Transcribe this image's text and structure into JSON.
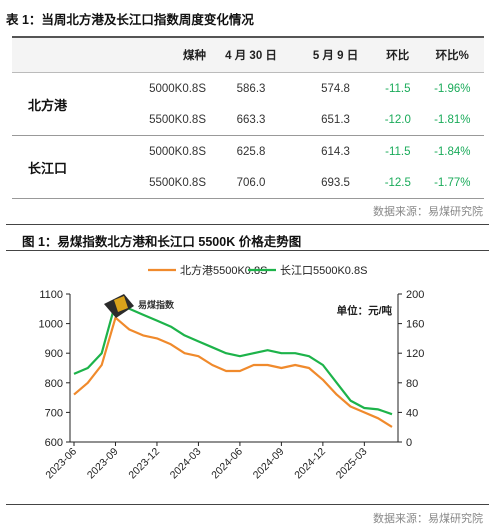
{
  "table": {
    "caption": "表 1：当周北方港及长江口指数周度变化情况",
    "headers": [
      "",
      "煤种",
      "4 月 30 日",
      "5 月 9 日",
      "环比",
      "环比%"
    ],
    "groups": [
      {
        "port": "北方港",
        "rows": [
          {
            "kind": "5000K0.8S",
            "apr30": "586.3",
            "may9": "574.8",
            "chg": "-11.5",
            "pct": "-1.96%"
          },
          {
            "kind": "5500K0.8S",
            "apr30": "663.3",
            "may9": "651.3",
            "chg": "-12.0",
            "pct": "-1.81%"
          }
        ]
      },
      {
        "port": "长江口",
        "rows": [
          {
            "kind": "5000K0.8S",
            "apr30": "625.8",
            "may9": "614.3",
            "chg": "-11.5",
            "pct": "-1.84%"
          },
          {
            "kind": "5500K0.8S",
            "apr30": "706.0",
            "may9": "693.5",
            "chg": "-12.5",
            "pct": "-1.77%"
          }
        ]
      }
    ],
    "source": "数据来源：易煤研究院"
  },
  "chart": {
    "caption": "图 1：易煤指数北方港和长江口 5500K 价格走势图",
    "unit_label": "单位：元/吨",
    "logo_text": "易煤指数",
    "source": "数据来源：易煤研究院"
  },
  "chart_data": {
    "type": "line",
    "x": [
      "2023-06",
      "2023-07",
      "2023-08",
      "2023-09",
      "2023-10",
      "2023-11",
      "2023-12",
      "2024-01",
      "2024-02",
      "2024-03",
      "2024-04",
      "2024-05",
      "2024-06",
      "2024-07",
      "2024-08",
      "2024-09",
      "2024-10",
      "2024-11",
      "2024-12",
      "2025-01",
      "2025-02",
      "2025-03",
      "2025-04",
      "2025-05"
    ],
    "x_tick_labels": [
      "2023-06",
      "2023-09",
      "2023-12",
      "2024-03",
      "2024-06",
      "2024-09",
      "2024-12",
      "2025-03"
    ],
    "y_left_ticks": [
      600,
      700,
      800,
      900,
      1000,
      1100
    ],
    "y_right_ticks": [
      0,
      40,
      80,
      120,
      160,
      200
    ],
    "ylim_left": [
      600,
      1100
    ],
    "ylim_right": [
      0,
      200
    ],
    "series": [
      {
        "name": "北方港5500K0.8S",
        "color": "#f08a2c",
        "values": [
          760,
          800,
          860,
          1020,
          980,
          960,
          950,
          930,
          900,
          890,
          860,
          840,
          840,
          860,
          860,
          850,
          860,
          850,
          810,
          760,
          720,
          700,
          680,
          651
        ]
      },
      {
        "name": "长江口5500K0.8S",
        "color": "#1db34a",
        "values": [
          830,
          850,
          900,
          1070,
          1050,
          1030,
          1010,
          990,
          960,
          940,
          920,
          900,
          890,
          900,
          910,
          900,
          900,
          890,
          860,
          800,
          740,
          715,
          710,
          694
        ]
      }
    ],
    "legend_position": "top-center",
    "grid": false
  }
}
